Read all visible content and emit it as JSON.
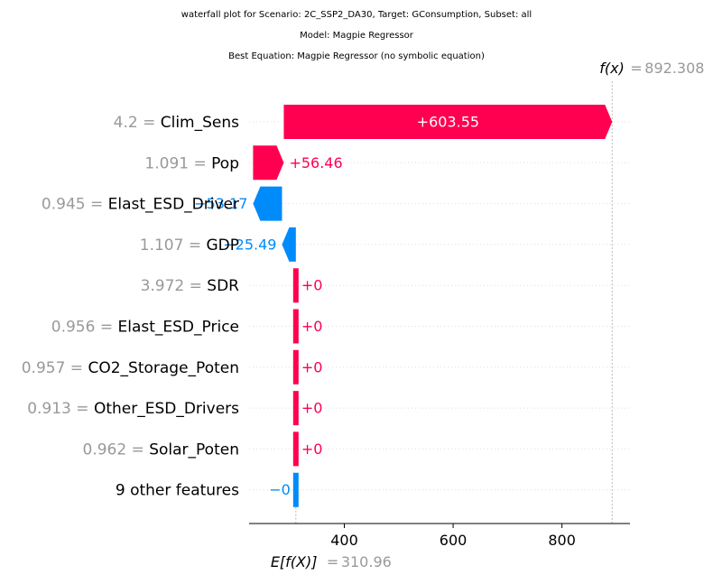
{
  "titles": [
    "waterfall plot for Scenario: 2C_SSP2_DA30, Target: GConsumption, Subset: all",
    "Model: Magpie Regressor",
    "Best Equation: Magpie Regressor (no symbolic equation)"
  ],
  "colors": {
    "positive": "#ff0051",
    "negative": "#008bfb",
    "feature_value": "#999999",
    "label": "#000000",
    "grid": "#dddddd",
    "reference_line": "#bbbbbb"
  },
  "fx": {
    "label": "f(x)",
    "value_text": "892.308"
  },
  "efx": {
    "label": "E[f(X)]",
    "value_text": "310.96"
  },
  "chart_data": {
    "type": "waterfall",
    "base_value": 310.96,
    "final_value": 892.308,
    "xlim": [
      225,
      925
    ],
    "xticks": [
      400,
      600,
      800
    ],
    "features": [
      {
        "value": "4.2",
        "name": "Clim_Sens",
        "contribution": 603.55,
        "label": "+603.55"
      },
      {
        "value": "1.091",
        "name": "Pop",
        "contribution": 56.46,
        "label": "+56.46"
      },
      {
        "value": "0.945",
        "name": "Elast_ESD_Driver",
        "contribution": -53.17,
        "label": "−53.17"
      },
      {
        "value": "1.107",
        "name": "GDP",
        "contribution": -25.49,
        "label": "−25.49"
      },
      {
        "value": "3.972",
        "name": "SDR",
        "contribution": 0,
        "label": "+0"
      },
      {
        "value": "0.956",
        "name": "Elast_ESD_Price",
        "contribution": 0,
        "label": "+0"
      },
      {
        "value": "0.957",
        "name": "CO2_Storage_Poten",
        "contribution": 0,
        "label": "+0"
      },
      {
        "value": "0.913",
        "name": "Other_ESD_Drivers",
        "contribution": 0,
        "label": "+0"
      },
      {
        "value": "0.962",
        "name": "Solar_Poten",
        "contribution": 0,
        "label": "+0"
      },
      {
        "value": "",
        "name": "9 other features",
        "contribution": -0.0,
        "label": "−0"
      }
    ]
  }
}
